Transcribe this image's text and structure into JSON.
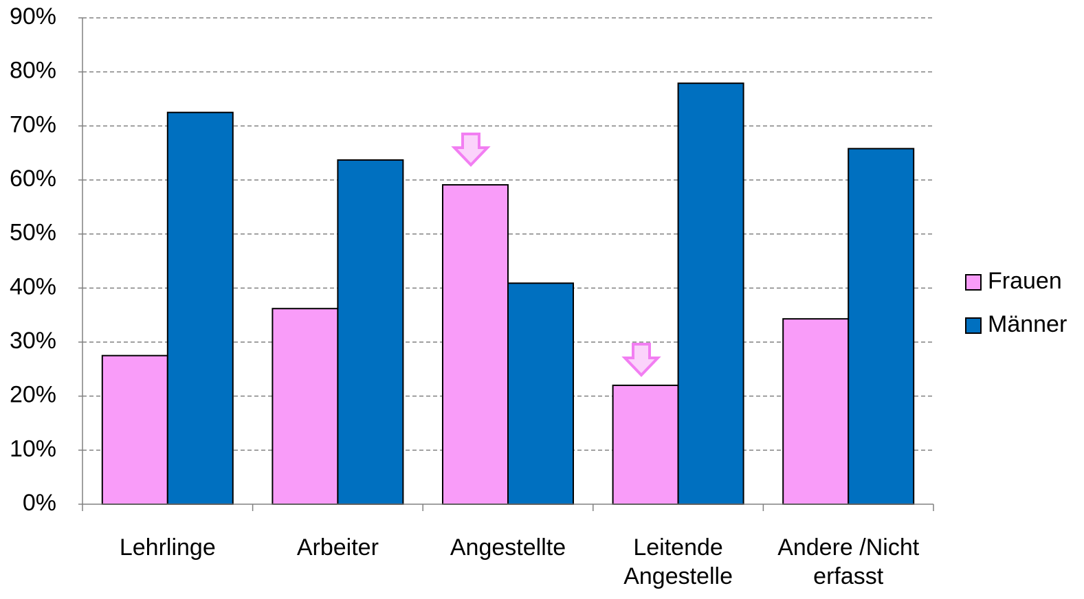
{
  "chart_data": {
    "type": "bar",
    "categories": [
      "Lehrlinge",
      "Arbeiter",
      "Angestellte",
      "Leitende Angestelle",
      "Andere /Nicht erfasst"
    ],
    "series": [
      {
        "name": "Frauen",
        "color": "#f99cf9",
        "values": [
          27.5,
          36.2,
          59.1,
          22.0,
          34.3
        ]
      },
      {
        "name": "Männer",
        "color": "#0070c0",
        "values": [
          72.5,
          63.7,
          40.9,
          77.9,
          65.8
        ]
      }
    ],
    "ylim": [
      0,
      90
    ],
    "yticks": [
      {
        "value": 0,
        "label": "0%"
      },
      {
        "value": 10,
        "label": "10%"
      },
      {
        "value": 20,
        "label": "20%"
      },
      {
        "value": 30,
        "label": "30%"
      },
      {
        "value": 40,
        "label": "40%"
      },
      {
        "value": 50,
        "label": "50%"
      },
      {
        "value": 60,
        "label": "60%"
      },
      {
        "value": 70,
        "label": "70%"
      },
      {
        "value": 80,
        "label": "80%"
      },
      {
        "value": 90,
        "label": "90%"
      }
    ],
    "grid": true,
    "legend": "right"
  }
}
